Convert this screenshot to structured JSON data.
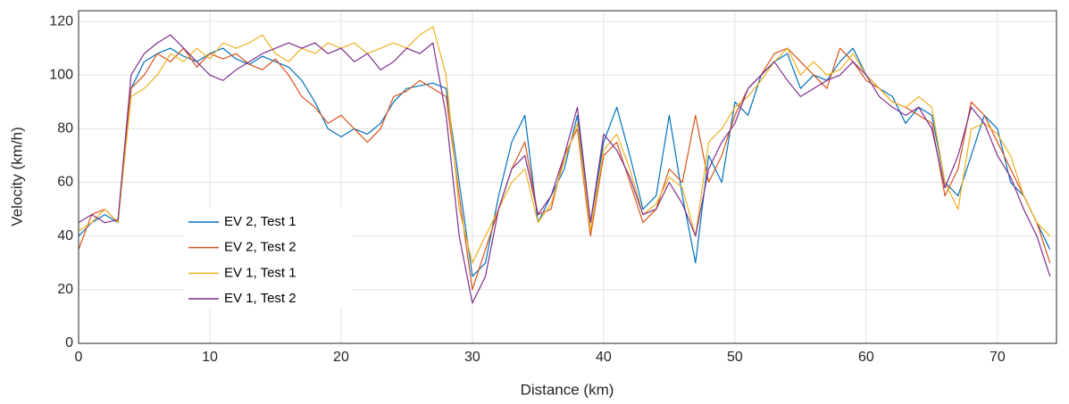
{
  "chart_data": {
    "type": "line",
    "x_label": "Distance (km)",
    "y_label": "Velocity (km/h)",
    "x": [
      0,
      1,
      2,
      3,
      4,
      5,
      6,
      7,
      8,
      9,
      10,
      11,
      12,
      13,
      14,
      15,
      16,
      17,
      18,
      19,
      20,
      21,
      22,
      23,
      24,
      25,
      26,
      27,
      28,
      29,
      30,
      31,
      32,
      33,
      34,
      35,
      36,
      37,
      38,
      39,
      40,
      41,
      42,
      43,
      44,
      45,
      46,
      47,
      48,
      49,
      50,
      51,
      52,
      53,
      54,
      55,
      56,
      57,
      58,
      59,
      60,
      61,
      62,
      63,
      64,
      65,
      66,
      67,
      68,
      69,
      70,
      71,
      72,
      73,
      74
    ],
    "series": [
      {
        "name": "EV 2, Test 1",
        "color": "#0072bd",
        "values": [
          40,
          45,
          48,
          45,
          95,
          105,
          108,
          110,
          107,
          105,
          108,
          110,
          106,
          104,
          107,
          105,
          103,
          98,
          90,
          80,
          77,
          80,
          78,
          82,
          90,
          95,
          96,
          97,
          95,
          60,
          25,
          30,
          55,
          75,
          85,
          45,
          55,
          65,
          85,
          45,
          75,
          88,
          70,
          50,
          55,
          85,
          55,
          30,
          70,
          60,
          90,
          85,
          100,
          105,
          108,
          95,
          100,
          98,
          105,
          110,
          100,
          95,
          92,
          82,
          88,
          85,
          60,
          55,
          70,
          85,
          80,
          60,
          55,
          45,
          35
        ]
      },
      {
        "name": "EV 2, Test 2",
        "color": "#d95319",
        "values": [
          35,
          48,
          50,
          45,
          95,
          100,
          108,
          105,
          110,
          103,
          108,
          106,
          108,
          104,
          102,
          106,
          100,
          92,
          88,
          82,
          85,
          80,
          75,
          80,
          92,
          94,
          98,
          95,
          92,
          55,
          20,
          35,
          50,
          65,
          75,
          48,
          50,
          70,
          80,
          40,
          70,
          75,
          60,
          45,
          50,
          65,
          60,
          85,
          60,
          70,
          85,
          95,
          100,
          108,
          110,
          105,
          100,
          95,
          110,
          105,
          98,
          95,
          90,
          88,
          85,
          82,
          55,
          65,
          90,
          85,
          75,
          65,
          55,
          45,
          30
        ]
      },
      {
        "name": "EV 1, Test 1",
        "color": "#edb120",
        "values": [
          42,
          45,
          50,
          45,
          92,
          95,
          100,
          108,
          105,
          110,
          106,
          112,
          110,
          112,
          115,
          108,
          105,
          110,
          108,
          112,
          110,
          112,
          108,
          110,
          112,
          110,
          115,
          118,
          100,
          50,
          30,
          40,
          50,
          60,
          65,
          45,
          52,
          68,
          82,
          42,
          72,
          78,
          65,
          48,
          52,
          62,
          58,
          40,
          75,
          80,
          88,
          92,
          98,
          105,
          110,
          100,
          105,
          100,
          102,
          108,
          100,
          95,
          90,
          88,
          92,
          88,
          60,
          50,
          80,
          82,
          78,
          70,
          55,
          45,
          40
        ]
      },
      {
        "name": "EV 1, Test 2",
        "color": "#7e2f8e",
        "values": [
          45,
          48,
          45,
          46,
          100,
          108,
          112,
          115,
          110,
          105,
          100,
          98,
          102,
          105,
          108,
          110,
          112,
          110,
          112,
          108,
          110,
          105,
          108,
          102,
          105,
          110,
          108,
          112,
          85,
          40,
          15,
          25,
          50,
          65,
          70,
          48,
          55,
          70,
          88,
          45,
          78,
          72,
          62,
          48,
          50,
          60,
          52,
          40,
          65,
          75,
          82,
          95,
          100,
          105,
          98,
          92,
          95,
          98,
          100,
          105,
          100,
          92,
          88,
          85,
          88,
          80,
          58,
          70,
          88,
          82,
          70,
          62,
          50,
          40,
          25
        ]
      }
    ],
    "xlim": [
      0,
      74.5
    ],
    "ylim": [
      0,
      124
    ],
    "xticks": [
      0,
      10,
      20,
      30,
      40,
      50,
      60,
      70
    ],
    "yticks": [
      0,
      20,
      40,
      60,
      80,
      100,
      120
    ],
    "grid": true,
    "legend_position": "lower left"
  }
}
